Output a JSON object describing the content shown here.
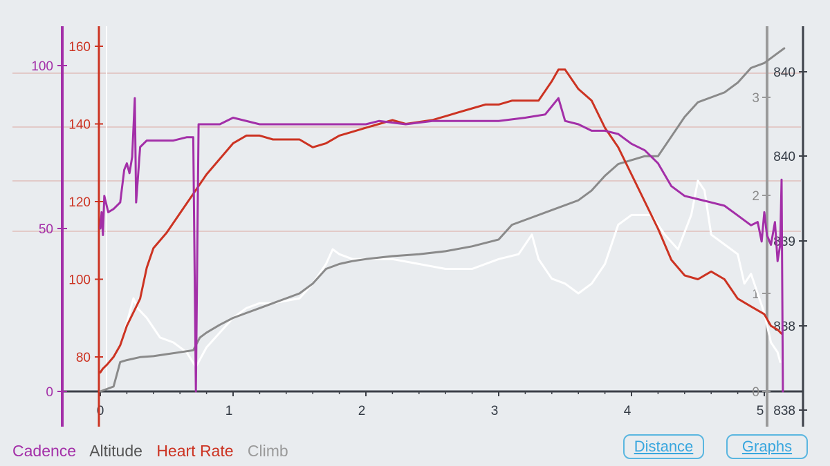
{
  "chart_data": {
    "type": "line",
    "x": {
      "label": "",
      "range": [
        0,
        5.25
      ],
      "ticks": [
        0,
        1,
        2,
        3,
        4,
        5
      ],
      "tick_labels": [
        "0",
        "1",
        "2",
        "3",
        "4",
        "5"
      ]
    },
    "axes": {
      "cadence": {
        "range": [
          0,
          100
        ],
        "ticks": [
          0,
          50,
          100
        ],
        "tick_labels": [
          "0",
          "50",
          "100"
        ],
        "color": "#a32fa8"
      },
      "heart_rate": {
        "range": [
          76,
          162
        ],
        "ticks": [
          80,
          100,
          120,
          140,
          160
        ],
        "tick_labels": [
          "80",
          "100",
          "120",
          "140",
          "160"
        ],
        "color": "#cc3322"
      },
      "climb": {
        "range": [
          0,
          3.4
        ],
        "ticks": [
          0,
          1,
          2,
          3
        ],
        "tick_labels": [
          "0",
          "1",
          "2",
          "3"
        ],
        "color": "#8a8a8a"
      },
      "altitude": {
        "tick_labels": [
          "840",
          "840",
          "839",
          "838",
          "838"
        ],
        "color": "#555555"
      }
    },
    "grid": "horizontal",
    "legend_position": "bottom-left",
    "series": [
      {
        "name": "Cadence",
        "axis": "cadence",
        "color": "#a32fa8",
        "points": [
          [
            0,
            50
          ],
          [
            0.01,
            55
          ],
          [
            0.02,
            48
          ],
          [
            0.03,
            60
          ],
          [
            0.06,
            55
          ],
          [
            0.1,
            56
          ],
          [
            0.15,
            58
          ],
          [
            0.18,
            68
          ],
          [
            0.2,
            70
          ],
          [
            0.22,
            67
          ],
          [
            0.24,
            72
          ],
          [
            0.26,
            90
          ],
          [
            0.27,
            58
          ],
          [
            0.3,
            75
          ],
          [
            0.35,
            77
          ],
          [
            0.45,
            77
          ],
          [
            0.55,
            77
          ],
          [
            0.65,
            78
          ],
          [
            0.7,
            78
          ],
          [
            0.72,
            0
          ],
          [
            0.74,
            82
          ],
          [
            0.8,
            82
          ],
          [
            0.9,
            82
          ],
          [
            1.0,
            84
          ],
          [
            1.2,
            82
          ],
          [
            1.5,
            82
          ],
          [
            1.8,
            82
          ],
          [
            2.0,
            82
          ],
          [
            2.1,
            83
          ],
          [
            2.3,
            82
          ],
          [
            2.5,
            83
          ],
          [
            2.8,
            83
          ],
          [
            3.0,
            83
          ],
          [
            3.2,
            84
          ],
          [
            3.35,
            85
          ],
          [
            3.45,
            90
          ],
          [
            3.5,
            83
          ],
          [
            3.6,
            82
          ],
          [
            3.7,
            80
          ],
          [
            3.8,
            80
          ],
          [
            3.9,
            79
          ],
          [
            4.0,
            76
          ],
          [
            4.1,
            74
          ],
          [
            4.2,
            70
          ],
          [
            4.3,
            63
          ],
          [
            4.4,
            60
          ],
          [
            4.5,
            59
          ],
          [
            4.6,
            58
          ],
          [
            4.7,
            57
          ],
          [
            4.8,
            54
          ],
          [
            4.9,
            51
          ],
          [
            4.95,
            52
          ],
          [
            4.98,
            46
          ],
          [
            5.0,
            55
          ],
          [
            5.02,
            48
          ],
          [
            5.05,
            45
          ],
          [
            5.08,
            52
          ],
          [
            5.1,
            40
          ],
          [
            5.12,
            45
          ],
          [
            5.13,
            65
          ],
          [
            5.14,
            0
          ]
        ]
      },
      {
        "name": "Heart Rate",
        "axis": "heart_rate",
        "color": "#cc3322",
        "points": [
          [
            0,
            76
          ],
          [
            0.02,
            77
          ],
          [
            0.05,
            78
          ],
          [
            0.1,
            80
          ],
          [
            0.15,
            83
          ],
          [
            0.2,
            88
          ],
          [
            0.3,
            95
          ],
          [
            0.35,
            103
          ],
          [
            0.4,
            108
          ],
          [
            0.5,
            112
          ],
          [
            0.6,
            117
          ],
          [
            0.7,
            122
          ],
          [
            0.8,
            127
          ],
          [
            0.9,
            131
          ],
          [
            1.0,
            135
          ],
          [
            1.1,
            137
          ],
          [
            1.2,
            137
          ],
          [
            1.3,
            136
          ],
          [
            1.5,
            136
          ],
          [
            1.6,
            134
          ],
          [
            1.7,
            135
          ],
          [
            1.8,
            137
          ],
          [
            1.9,
            138
          ],
          [
            2.0,
            139
          ],
          [
            2.1,
            140
          ],
          [
            2.2,
            141
          ],
          [
            2.3,
            140
          ],
          [
            2.5,
            141
          ],
          [
            2.6,
            142
          ],
          [
            2.7,
            143
          ],
          [
            2.8,
            144
          ],
          [
            2.9,
            145
          ],
          [
            3.0,
            145
          ],
          [
            3.1,
            146
          ],
          [
            3.2,
            146
          ],
          [
            3.3,
            146
          ],
          [
            3.4,
            151
          ],
          [
            3.45,
            154
          ],
          [
            3.5,
            154
          ],
          [
            3.6,
            149
          ],
          [
            3.7,
            146
          ],
          [
            3.8,
            139
          ],
          [
            3.9,
            134
          ],
          [
            4.0,
            127
          ],
          [
            4.1,
            120
          ],
          [
            4.2,
            113
          ],
          [
            4.3,
            105
          ],
          [
            4.4,
            101
          ],
          [
            4.5,
            100
          ],
          [
            4.6,
            102
          ],
          [
            4.7,
            100
          ],
          [
            4.8,
            95
          ],
          [
            4.9,
            93
          ],
          [
            5.0,
            91
          ],
          [
            5.05,
            88
          ],
          [
            5.1,
            87
          ],
          [
            5.13,
            86
          ]
        ]
      },
      {
        "name": "Altitude",
        "axis": "climb",
        "color": "#d0d0d0",
        "points": [
          [
            0.18,
            0.6
          ],
          [
            0.2,
            0.7
          ],
          [
            0.25,
            0.95
          ],
          [
            0.28,
            0.85
          ],
          [
            0.35,
            0.75
          ],
          [
            0.45,
            0.55
          ],
          [
            0.55,
            0.5
          ],
          [
            0.65,
            0.4
          ],
          [
            0.72,
            0.25
          ],
          [
            0.8,
            0.45
          ],
          [
            0.9,
            0.6
          ],
          [
            1.0,
            0.75
          ],
          [
            1.1,
            0.85
          ],
          [
            1.2,
            0.9
          ],
          [
            1.3,
            0.9
          ],
          [
            1.5,
            0.95
          ],
          [
            1.6,
            1.1
          ],
          [
            1.7,
            1.3
          ],
          [
            1.75,
            1.45
          ],
          [
            1.8,
            1.4
          ],
          [
            1.9,
            1.35
          ],
          [
            2.0,
            1.35
          ],
          [
            2.2,
            1.35
          ],
          [
            2.4,
            1.3
          ],
          [
            2.6,
            1.25
          ],
          [
            2.8,
            1.25
          ],
          [
            3.0,
            1.35
          ],
          [
            3.15,
            1.4
          ],
          [
            3.25,
            1.6
          ],
          [
            3.3,
            1.35
          ],
          [
            3.4,
            1.15
          ],
          [
            3.5,
            1.1
          ],
          [
            3.6,
            1.0
          ],
          [
            3.7,
            1.1
          ],
          [
            3.8,
            1.3
          ],
          [
            3.9,
            1.7
          ],
          [
            4.0,
            1.8
          ],
          [
            4.15,
            1.8
          ],
          [
            4.25,
            1.6
          ],
          [
            4.35,
            1.45
          ],
          [
            4.45,
            1.8
          ],
          [
            4.5,
            2.15
          ],
          [
            4.55,
            2.05
          ],
          [
            4.6,
            1.6
          ],
          [
            4.7,
            1.5
          ],
          [
            4.8,
            1.4
          ],
          [
            4.85,
            1.1
          ],
          [
            4.9,
            1.2
          ],
          [
            4.95,
            1.0
          ],
          [
            5.0,
            0.8
          ],
          [
            5.05,
            0.5
          ],
          [
            5.1,
            0.4
          ],
          [
            5.12,
            0.3
          ]
        ]
      },
      {
        "name": "Climb",
        "axis": "climb",
        "color": "#8a8a8a",
        "points": [
          [
            0,
            0
          ],
          [
            0.1,
            0.05
          ],
          [
            0.15,
            0.3
          ],
          [
            0.2,
            0.32
          ],
          [
            0.3,
            0.35
          ],
          [
            0.4,
            0.36
          ],
          [
            0.5,
            0.38
          ],
          [
            0.6,
            0.4
          ],
          [
            0.7,
            0.42
          ],
          [
            0.75,
            0.55
          ],
          [
            0.8,
            0.6
          ],
          [
            0.9,
            0.68
          ],
          [
            1.0,
            0.75
          ],
          [
            1.1,
            0.8
          ],
          [
            1.2,
            0.85
          ],
          [
            1.3,
            0.9
          ],
          [
            1.4,
            0.95
          ],
          [
            1.5,
            1.0
          ],
          [
            1.6,
            1.1
          ],
          [
            1.7,
            1.25
          ],
          [
            1.8,
            1.3
          ],
          [
            1.9,
            1.33
          ],
          [
            2.0,
            1.35
          ],
          [
            2.2,
            1.38
          ],
          [
            2.4,
            1.4
          ],
          [
            2.6,
            1.43
          ],
          [
            2.8,
            1.48
          ],
          [
            3.0,
            1.55
          ],
          [
            3.1,
            1.7
          ],
          [
            3.2,
            1.75
          ],
          [
            3.4,
            1.85
          ],
          [
            3.6,
            1.95
          ],
          [
            3.7,
            2.05
          ],
          [
            3.8,
            2.2
          ],
          [
            3.9,
            2.32
          ],
          [
            4.0,
            2.36
          ],
          [
            4.1,
            2.4
          ],
          [
            4.2,
            2.4
          ],
          [
            4.3,
            2.6
          ],
          [
            4.4,
            2.8
          ],
          [
            4.5,
            2.95
          ],
          [
            4.6,
            3.0
          ],
          [
            4.7,
            3.05
          ],
          [
            4.8,
            3.15
          ],
          [
            4.9,
            3.3
          ],
          [
            5.0,
            3.35
          ],
          [
            5.1,
            3.45
          ],
          [
            5.15,
            3.5
          ]
        ]
      }
    ]
  },
  "legend": {
    "cadence": {
      "label": "Cadence",
      "color": "#a32fa8"
    },
    "altitude": {
      "label": "Altitude",
      "color": "#555555"
    },
    "heart_rate": {
      "label": "Heart Rate",
      "color": "#cc3322"
    },
    "climb": {
      "label": "Climb",
      "color": "#9a9a9a"
    }
  },
  "buttons": {
    "distance": "Distance",
    "graphs": "Graphs"
  }
}
